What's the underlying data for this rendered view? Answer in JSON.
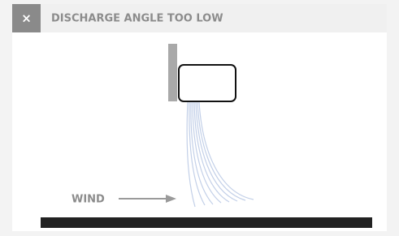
{
  "header": {
    "close": "×",
    "title": "DISCHARGE ANGLE TOO LOW"
  },
  "labels": {
    "wind": "WIND"
  }
}
